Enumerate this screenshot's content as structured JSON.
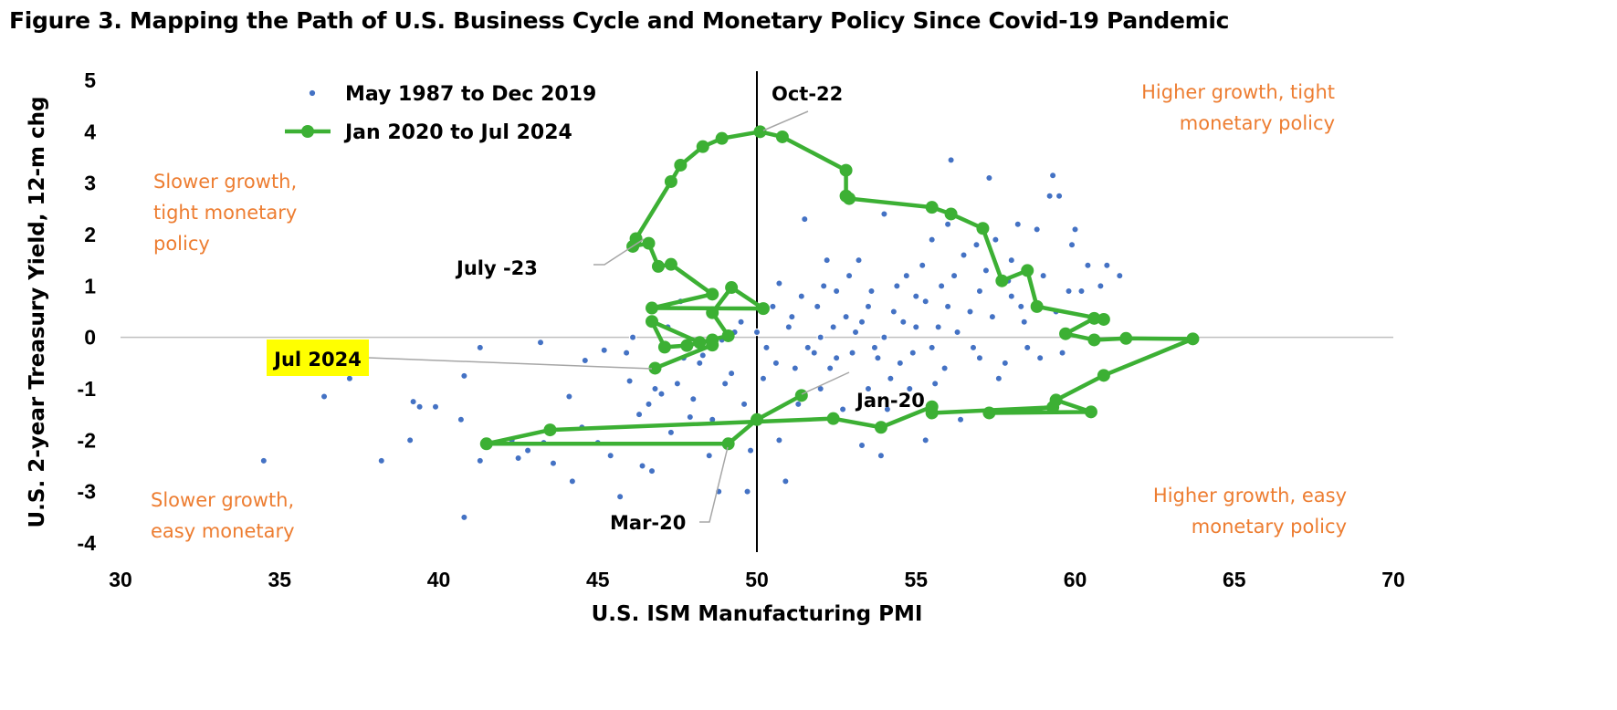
{
  "chart_data": {
    "type": "scatter",
    "title": "Figure 3. Mapping the Path of U.S. Business Cycle and Monetary Policy Since Covid-19 Pandemic",
    "xlabel": "U.S. ISM Manufacturing PMI",
    "ylabel": "U.S. 2-year Treasury Yield, 12-m chg",
    "xlim": [
      30,
      70
    ],
    "ylim": [
      -4,
      5
    ],
    "xticks": [
      "30",
      "35",
      "40",
      "45",
      "50",
      "55",
      "60",
      "65",
      "70"
    ],
    "yticks": [
      "5",
      "4",
      "3",
      "2",
      "1",
      "0",
      "-1",
      "-2",
      "-3",
      "-4"
    ],
    "legend_position": "top-left",
    "colors": {
      "scatter": "#4472C4",
      "path": "#3CB034",
      "quadrant_text": "#ED7D31",
      "highlight": "#FFFF00"
    },
    "quadrant_labels": {
      "top_left": [
        "Slower growth,",
        "tight monetary",
        "policy"
      ],
      "top_right": [
        "Higher growth, tight",
        "monetary policy"
      ],
      "bottom_left": [
        "Slower growth,",
        "easy monetary"
      ],
      "bottom_right": [
        "Higher growth, easy",
        "monetary policy"
      ]
    },
    "annotations": {
      "oct22": "Oct-22",
      "jul23": "July -23",
      "jul24": "Jul 2024",
      "jan20": "Jan-20",
      "mar20": "Mar-20"
    },
    "series": [
      {
        "name": "May 1987 to Dec 2019",
        "points": [
          [
            34.5,
            -2.4
          ],
          [
            36.4,
            -1.15
          ],
          [
            37.2,
            -0.8
          ],
          [
            38.2,
            -2.4
          ],
          [
            39.1,
            -2.0
          ],
          [
            39.2,
            -1.25
          ],
          [
            39.4,
            -1.35
          ],
          [
            39.9,
            -1.35
          ],
          [
            40.8,
            -0.75
          ],
          [
            40.7,
            -1.6
          ],
          [
            40.8,
            -3.5
          ],
          [
            41.3,
            -2.4
          ],
          [
            41.3,
            -0.2
          ],
          [
            42.3,
            -2.0
          ],
          [
            42.5,
            -2.35
          ],
          [
            42.8,
            -2.2
          ],
          [
            43.2,
            -0.1
          ],
          [
            43.3,
            -2.05
          ],
          [
            43.6,
            -2.45
          ],
          [
            44.1,
            -1.15
          ],
          [
            44.2,
            -2.8
          ],
          [
            44.5,
            -1.75
          ],
          [
            44.6,
            -0.45
          ],
          [
            45.2,
            -0.25
          ],
          [
            45.0,
            -2.05
          ],
          [
            45.4,
            -2.3
          ],
          [
            45.7,
            -3.1
          ],
          [
            45.9,
            -0.3
          ],
          [
            46.0,
            -0.85
          ],
          [
            46.1,
            0.0
          ],
          [
            46.3,
            -1.5
          ],
          [
            46.4,
            -2.5
          ],
          [
            46.7,
            -2.6
          ],
          [
            46.8,
            -1.0
          ],
          [
            47.2,
            0.2
          ],
          [
            47.3,
            -1.85
          ],
          [
            47.6,
            0.7
          ],
          [
            47.9,
            -1.55
          ],
          [
            48.2,
            -0.5
          ],
          [
            48.5,
            -2.3
          ],
          [
            48.8,
            -3.0
          ],
          [
            48.9,
            -0.05
          ],
          [
            49.2,
            -0.7
          ],
          [
            49.7,
            -3.0
          ],
          [
            49.6,
            -1.3
          ],
          [
            49.5,
            0.3
          ],
          [
            49.8,
            -2.2
          ],
          [
            50.2,
            -0.8
          ],
          [
            50.5,
            0.6
          ],
          [
            50.7,
            1.05
          ],
          [
            50.9,
            -2.8
          ],
          [
            50.7,
            -2.0
          ],
          [
            51.0,
            0.2
          ],
          [
            51.2,
            -0.6
          ],
          [
            51.5,
            2.3
          ],
          [
            51.4,
            0.8
          ],
          [
            51.8,
            -0.3
          ],
          [
            52.0,
            -1.0
          ],
          [
            52.2,
            1.5
          ],
          [
            52.4,
            0.2
          ],
          [
            52.5,
            -0.4
          ],
          [
            52.7,
            -1.4
          ],
          [
            52.9,
            1.2
          ],
          [
            53.1,
            0.1
          ],
          [
            53.3,
            -2.1
          ],
          [
            53.5,
            0.6
          ],
          [
            53.7,
            -0.2
          ],
          [
            53.9,
            -2.3
          ],
          [
            54.0,
            2.4
          ],
          [
            54.2,
            -0.8
          ],
          [
            54.4,
            1.0
          ],
          [
            54.6,
            0.3
          ],
          [
            54.8,
            -1.0
          ],
          [
            55.0,
            0.8
          ],
          [
            55.3,
            -2.0
          ],
          [
            55.5,
            1.9
          ],
          [
            55.7,
            0.2
          ],
          [
            55.9,
            -0.6
          ],
          [
            56.1,
            3.45
          ],
          [
            56.2,
            1.2
          ],
          [
            56.4,
            -1.6
          ],
          [
            56.7,
            0.5
          ],
          [
            57.0,
            -0.4
          ],
          [
            57.2,
            1.3
          ],
          [
            57.3,
            3.1
          ],
          [
            57.5,
            1.9
          ],
          [
            57.8,
            -0.5
          ],
          [
            58.0,
            0.8
          ],
          [
            58.2,
            2.2
          ],
          [
            58.5,
            -0.2
          ],
          [
            58.8,
            2.1
          ],
          [
            59.0,
            1.2
          ],
          [
            59.2,
            2.75
          ],
          [
            59.3,
            3.15
          ],
          [
            59.5,
            2.75
          ],
          [
            59.6,
            -0.3
          ],
          [
            59.9,
            1.8
          ],
          [
            60.0,
            2.1
          ],
          [
            60.2,
            0.9
          ],
          [
            60.4,
            1.4
          ],
          [
            60.6,
            -0.1
          ],
          [
            60.8,
            1.0
          ],
          [
            61.0,
            1.4
          ],
          [
            61.4,
            1.2
          ],
          [
            47.0,
            -1.1
          ],
          [
            47.5,
            -0.9
          ],
          [
            48.0,
            -1.2
          ],
          [
            48.3,
            -0.35
          ],
          [
            49.0,
            -0.9
          ],
          [
            50.0,
            0.1
          ],
          [
            50.3,
            -0.2
          ],
          [
            51.1,
            0.4
          ],
          [
            52.0,
            0.0
          ],
          [
            53.0,
            -0.3
          ],
          [
            54.0,
            0.0
          ],
          [
            55.0,
            0.2
          ],
          [
            56.0,
            0.6
          ],
          [
            57.0,
            0.9
          ],
          [
            58.0,
            1.5
          ],
          [
            52.5,
            0.9
          ],
          [
            53.5,
            -1.0
          ],
          [
            54.5,
            -0.5
          ],
          [
            55.5,
            -0.2
          ],
          [
            56.5,
            1.6
          ],
          [
            51.6,
            -0.2
          ],
          [
            52.3,
            -0.6
          ],
          [
            52.8,
            0.4
          ],
          [
            53.3,
            0.3
          ],
          [
            53.8,
            -0.4
          ],
          [
            54.3,
            0.5
          ],
          [
            54.9,
            -0.3
          ],
          [
            55.3,
            0.7
          ],
          [
            55.8,
            1.0
          ],
          [
            56.3,
            0.1
          ],
          [
            56.8,
            -0.2
          ],
          [
            57.4,
            0.4
          ],
          [
            57.9,
            1.1
          ],
          [
            58.4,
            0.3
          ],
          [
            58.9,
            -0.4
          ],
          [
            59.4,
            0.5
          ],
          [
            51.3,
            -1.3
          ],
          [
            52.1,
            1.0
          ],
          [
            53.2,
            1.5
          ],
          [
            54.1,
            -1.4
          ],
          [
            55.2,
            1.4
          ],
          [
            56.0,
            2.2
          ],
          [
            56.9,
            1.8
          ],
          [
            58.3,
            0.6
          ],
          [
            59.8,
            0.9
          ],
          [
            49.3,
            0.1
          ],
          [
            48.6,
            -1.6
          ],
          [
            47.7,
            -0.4
          ],
          [
            46.6,
            -1.3
          ],
          [
            50.6,
            -0.5
          ],
          [
            51.9,
            0.6
          ],
          [
            53.6,
            0.9
          ],
          [
            54.7,
            1.2
          ],
          [
            55.6,
            -0.9
          ],
          [
            57.6,
            -0.8
          ]
        ]
      },
      {
        "name": "Jan 2020 to Jul 2024",
        "points": [
          [
            51.4,
            -1.13
          ],
          [
            50.0,
            -1.6
          ],
          [
            49.1,
            -2.07
          ],
          [
            41.5,
            -2.07
          ],
          [
            43.5,
            -1.8
          ],
          [
            52.4,
            -1.58
          ],
          [
            53.9,
            -1.75
          ],
          [
            55.5,
            -1.35
          ],
          [
            55.5,
            -1.47
          ],
          [
            59.3,
            -1.36
          ],
          [
            57.3,
            -1.47
          ],
          [
            60.5,
            -1.45
          ],
          [
            59.4,
            -1.22
          ],
          [
            60.9,
            -0.74
          ],
          [
            63.7,
            -0.03
          ],
          [
            61.6,
            -0.02
          ],
          [
            60.6,
            -0.05
          ],
          [
            59.7,
            0.07
          ],
          [
            60.6,
            0.37
          ],
          [
            60.9,
            0.35
          ],
          [
            58.8,
            0.6
          ],
          [
            58.5,
            1.3
          ],
          [
            57.7,
            1.1
          ],
          [
            57.1,
            2.12
          ],
          [
            56.1,
            2.4
          ],
          [
            55.5,
            2.53
          ],
          [
            52.9,
            2.7
          ],
          [
            52.8,
            2.75
          ],
          [
            52.8,
            3.25
          ],
          [
            50.8,
            3.9
          ],
          [
            50.1,
            4.0
          ],
          [
            48.9,
            3.87
          ],
          [
            48.3,
            3.71
          ],
          [
            47.6,
            3.35
          ],
          [
            47.3,
            3.03
          ],
          [
            46.2,
            1.92
          ],
          [
            46.1,
            1.77
          ],
          [
            46.6,
            1.83
          ],
          [
            46.9,
            1.38
          ],
          [
            47.3,
            1.42
          ],
          [
            48.6,
            0.84
          ],
          [
            46.7,
            0.57
          ],
          [
            50.2,
            0.56
          ],
          [
            49.2,
            0.97
          ],
          [
            48.6,
            0.48
          ],
          [
            49.1,
            0.03
          ],
          [
            48.2,
            -0.1
          ],
          [
            46.7,
            0.31
          ],
          [
            47.1,
            -0.19
          ],
          [
            47.8,
            -0.16
          ],
          [
            48.6,
            -0.05
          ],
          [
            48.6,
            -0.15
          ],
          [
            46.8,
            -0.6
          ]
        ]
      }
    ]
  }
}
